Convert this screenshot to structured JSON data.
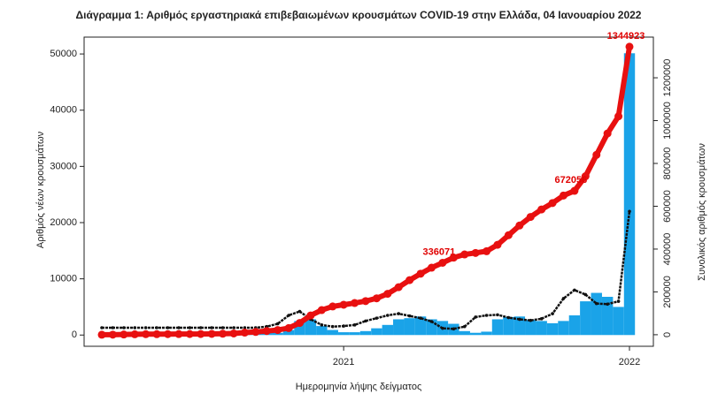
{
  "chart_data": {
    "type": "bar_line",
    "title": "Διάγραμμα 1: Αριθμός εργαστηριακά επιβεβαιωμένων κρουσμάτων COVID-19 στην Ελλάδα, 04 Ιανουαρίου 2022",
    "x_label": "Ημερομηνία λήψης δείγματος",
    "y_label": "Αριθμός νέων κρουσμάτων",
    "y2_label": "Συνολικός αριθμός κρουσμάτων",
    "categories": [
      null,
      null,
      null,
      null,
      null,
      null,
      null,
      null,
      null,
      null,
      null,
      null,
      null,
      null,
      null,
      null,
      null,
      null,
      null,
      null,
      null,
      null,
      "2021",
      null,
      null,
      null,
      null,
      null,
      null,
      null,
      null,
      null,
      null,
      null,
      null,
      null,
      null,
      null,
      null,
      null,
      null,
      null,
      null,
      null,
      null,
      null,
      null,
      null,
      "2022"
    ],
    "ylim": [
      -2000,
      53000
    ],
    "yticks": [
      0,
      10000,
      20000,
      30000,
      40000,
      50000
    ],
    "y2lim": [
      -54000,
      1390000
    ],
    "y2ticks": [
      0,
      200000,
      400000,
      600000,
      800000,
      1000000,
      1200000
    ],
    "series": [
      {
        "kind": "bar",
        "color": "#1aa3e8",
        "values": [
          0,
          20,
          80,
          60,
          20,
          10,
          10,
          10,
          20,
          20,
          30,
          80,
          250,
          250,
          300,
          350,
          400,
          900,
          2500,
          2800,
          1600,
          900,
          500,
          500,
          700,
          1200,
          1800,
          2800,
          3000,
          3300,
          2800,
          2500,
          2000,
          700,
          400,
          600,
          2800,
          3200,
          3300,
          2700,
          2500,
          2100,
          2500,
          3500,
          6000,
          7500,
          6800,
          5000,
          50126
        ]
      },
      {
        "kind": "line",
        "color": "#111111",
        "values": [
          1300,
          1300,
          1300,
          1300,
          1300,
          1300,
          1300,
          1300,
          1300,
          1300,
          1300,
          1300,
          1300,
          1300,
          1300,
          1500,
          2000,
          3500,
          4200,
          2800,
          1800,
          1500,
          1600,
          1800,
          2500,
          3000,
          3500,
          3800,
          3400,
          3000,
          2400,
          1200,
          1100,
          1500,
          3200,
          3500,
          3600,
          3100,
          2800,
          2600,
          2900,
          3800,
          6500,
          8000,
          7200,
          5600,
          5500,
          6000,
          22000
        ]
      },
      {
        "kind": "line",
        "axis": "y2",
        "color": "#e81010",
        "values": [
          0,
          190,
          1000,
          2100,
          2500,
          2700,
          2900,
          3000,
          3250,
          3500,
          4000,
          4600,
          6000,
          9800,
          13000,
          17300,
          22000,
          31000,
          55000,
          90000,
          115000,
          132000,
          140000,
          148000,
          157000,
          170000,
          191000,
          222000,
          255000,
          285000,
          313000,
          336071,
          360000,
          375000,
          382000,
          390000,
          420000,
          465000,
          510000,
          550000,
          585000,
          615000,
          650000,
          672056,
          740000,
          840000,
          940000,
          1020000,
          1344923
        ],
        "value_labels": [
          null,
          null,
          null,
          null,
          null,
          null,
          null,
          null,
          null,
          null,
          null,
          null,
          null,
          null,
          null,
          null,
          null,
          null,
          null,
          null,
          null,
          null,
          null,
          null,
          null,
          null,
          null,
          null,
          null,
          null,
          null,
          "336071",
          null,
          null,
          null,
          null,
          null,
          null,
          null,
          null,
          null,
          null,
          null,
          "672056",
          null,
          null,
          null,
          null,
          "1344923"
        ]
      }
    ]
  }
}
